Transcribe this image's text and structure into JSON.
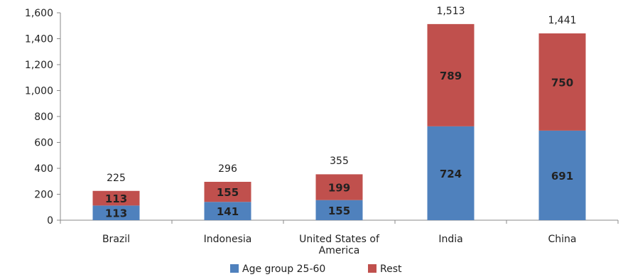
{
  "chart_data": {
    "type": "bar",
    "stacked": true,
    "categories": [
      "Brazil",
      "Indonesia",
      "United States of America",
      "India",
      "China"
    ],
    "category_lines": [
      [
        "Brazil"
      ],
      [
        "Indonesia"
      ],
      [
        "United States of",
        "America"
      ],
      [
        "India"
      ],
      [
        "China"
      ]
    ],
    "series": [
      {
        "name": "Age group 25-60",
        "values": [
          113,
          141,
          155,
          724,
          691
        ],
        "labels": [
          "113",
          "141",
          "155",
          "724",
          "691"
        ],
        "color": "#4f81bd"
      },
      {
        "name": "Rest",
        "values": [
          113,
          155,
          199,
          789,
          750
        ],
        "labels": [
          "113",
          "155",
          "199",
          "789",
          "750"
        ],
        "color": "#c0504d"
      }
    ],
    "totals": [
      225,
      296,
      355,
      1513,
      1441
    ],
    "total_labels": [
      "225",
      "296",
      "355",
      "1,513",
      "1,441"
    ],
    "ylim": [
      0,
      1600
    ],
    "yticks": [
      0,
      200,
      400,
      600,
      800,
      1000,
      1200,
      1400,
      1600
    ],
    "ytick_labels": [
      "0",
      "200",
      "400",
      "600",
      "800",
      "1,000",
      "1,200",
      "1,400",
      "1,600"
    ],
    "grid": false,
    "legend": "bottom",
    "title": "",
    "xlabel": "",
    "ylabel": ""
  }
}
